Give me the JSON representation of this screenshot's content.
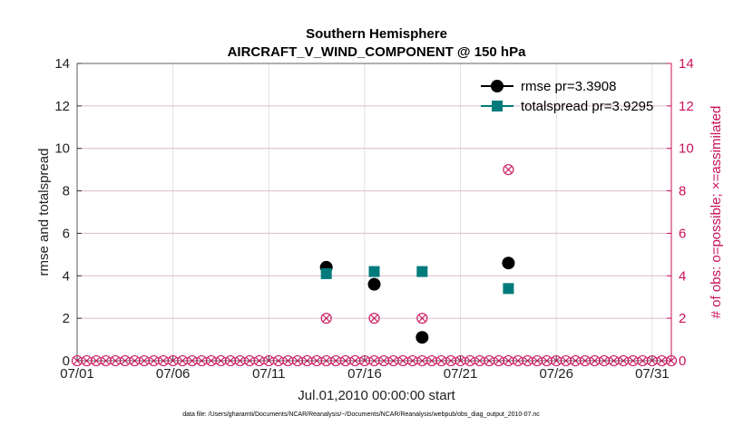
{
  "chart_data": {
    "type": "scatter",
    "title": "Southern Hemisphere",
    "subtitle": "AIRCRAFT_V_WIND_COMPONENT @ 150 hPa",
    "xlabel": "Jul.01,2010 00:00:00 start",
    "ylabel": "rmse and totalspread",
    "ylabel_right": "# of obs: o=possible; ×=assimilated",
    "xlim": [
      1,
      32
    ],
    "ylim": [
      0,
      14
    ],
    "ylim_right": [
      0,
      14
    ],
    "x_ticks": [
      1,
      6,
      11,
      16,
      21,
      26,
      31
    ],
    "x_tick_labels": [
      "07/01",
      "07/06",
      "07/11",
      "07/16",
      "07/21",
      "07/26",
      "07/31"
    ],
    "y_ticks": [
      0,
      2,
      4,
      6,
      8,
      10,
      12,
      14
    ],
    "y_tick_labels": [
      "0",
      "2",
      "4",
      "6",
      "8",
      "10",
      "12",
      "14"
    ],
    "y_right_tick_labels": [
      "0",
      "2",
      "4",
      "6",
      "8",
      "10",
      "12",
      "14"
    ],
    "grid": true,
    "legend_position": "top-right",
    "series": [
      {
        "name": "rmse pr=3.3908",
        "color": "#000000",
        "marker": "circle",
        "x": [
          14,
          16.5,
          19,
          23.5
        ],
        "y": [
          4.4,
          3.6,
          1.1,
          4.6
        ]
      },
      {
        "name": "totalspread pr=3.9295",
        "color": "#007b7b",
        "marker": "square",
        "x": [
          14,
          16.5,
          19,
          23.5
        ],
        "y": [
          4.1,
          4.2,
          4.2,
          3.4
        ]
      }
    ],
    "obs_counts": {
      "color": "#c8105a",
      "x_start": 1,
      "x_step": 0.5,
      "count": 63,
      "nonzero": [
        {
          "x": 14,
          "possible": 2,
          "assimilated": 2
        },
        {
          "x": 16.5,
          "possible": 2,
          "assimilated": 2
        },
        {
          "x": 19,
          "possible": 2,
          "assimilated": 2
        },
        {
          "x": 23.5,
          "possible": 9,
          "assimilated": 9
        }
      ]
    },
    "footnote": "data file: /Users/gharamti/Documents/NCAR/Reanalysis/~/Documents/NCAR/Reanalysis/webpub/obs_diag_output_2010-07.nc"
  }
}
